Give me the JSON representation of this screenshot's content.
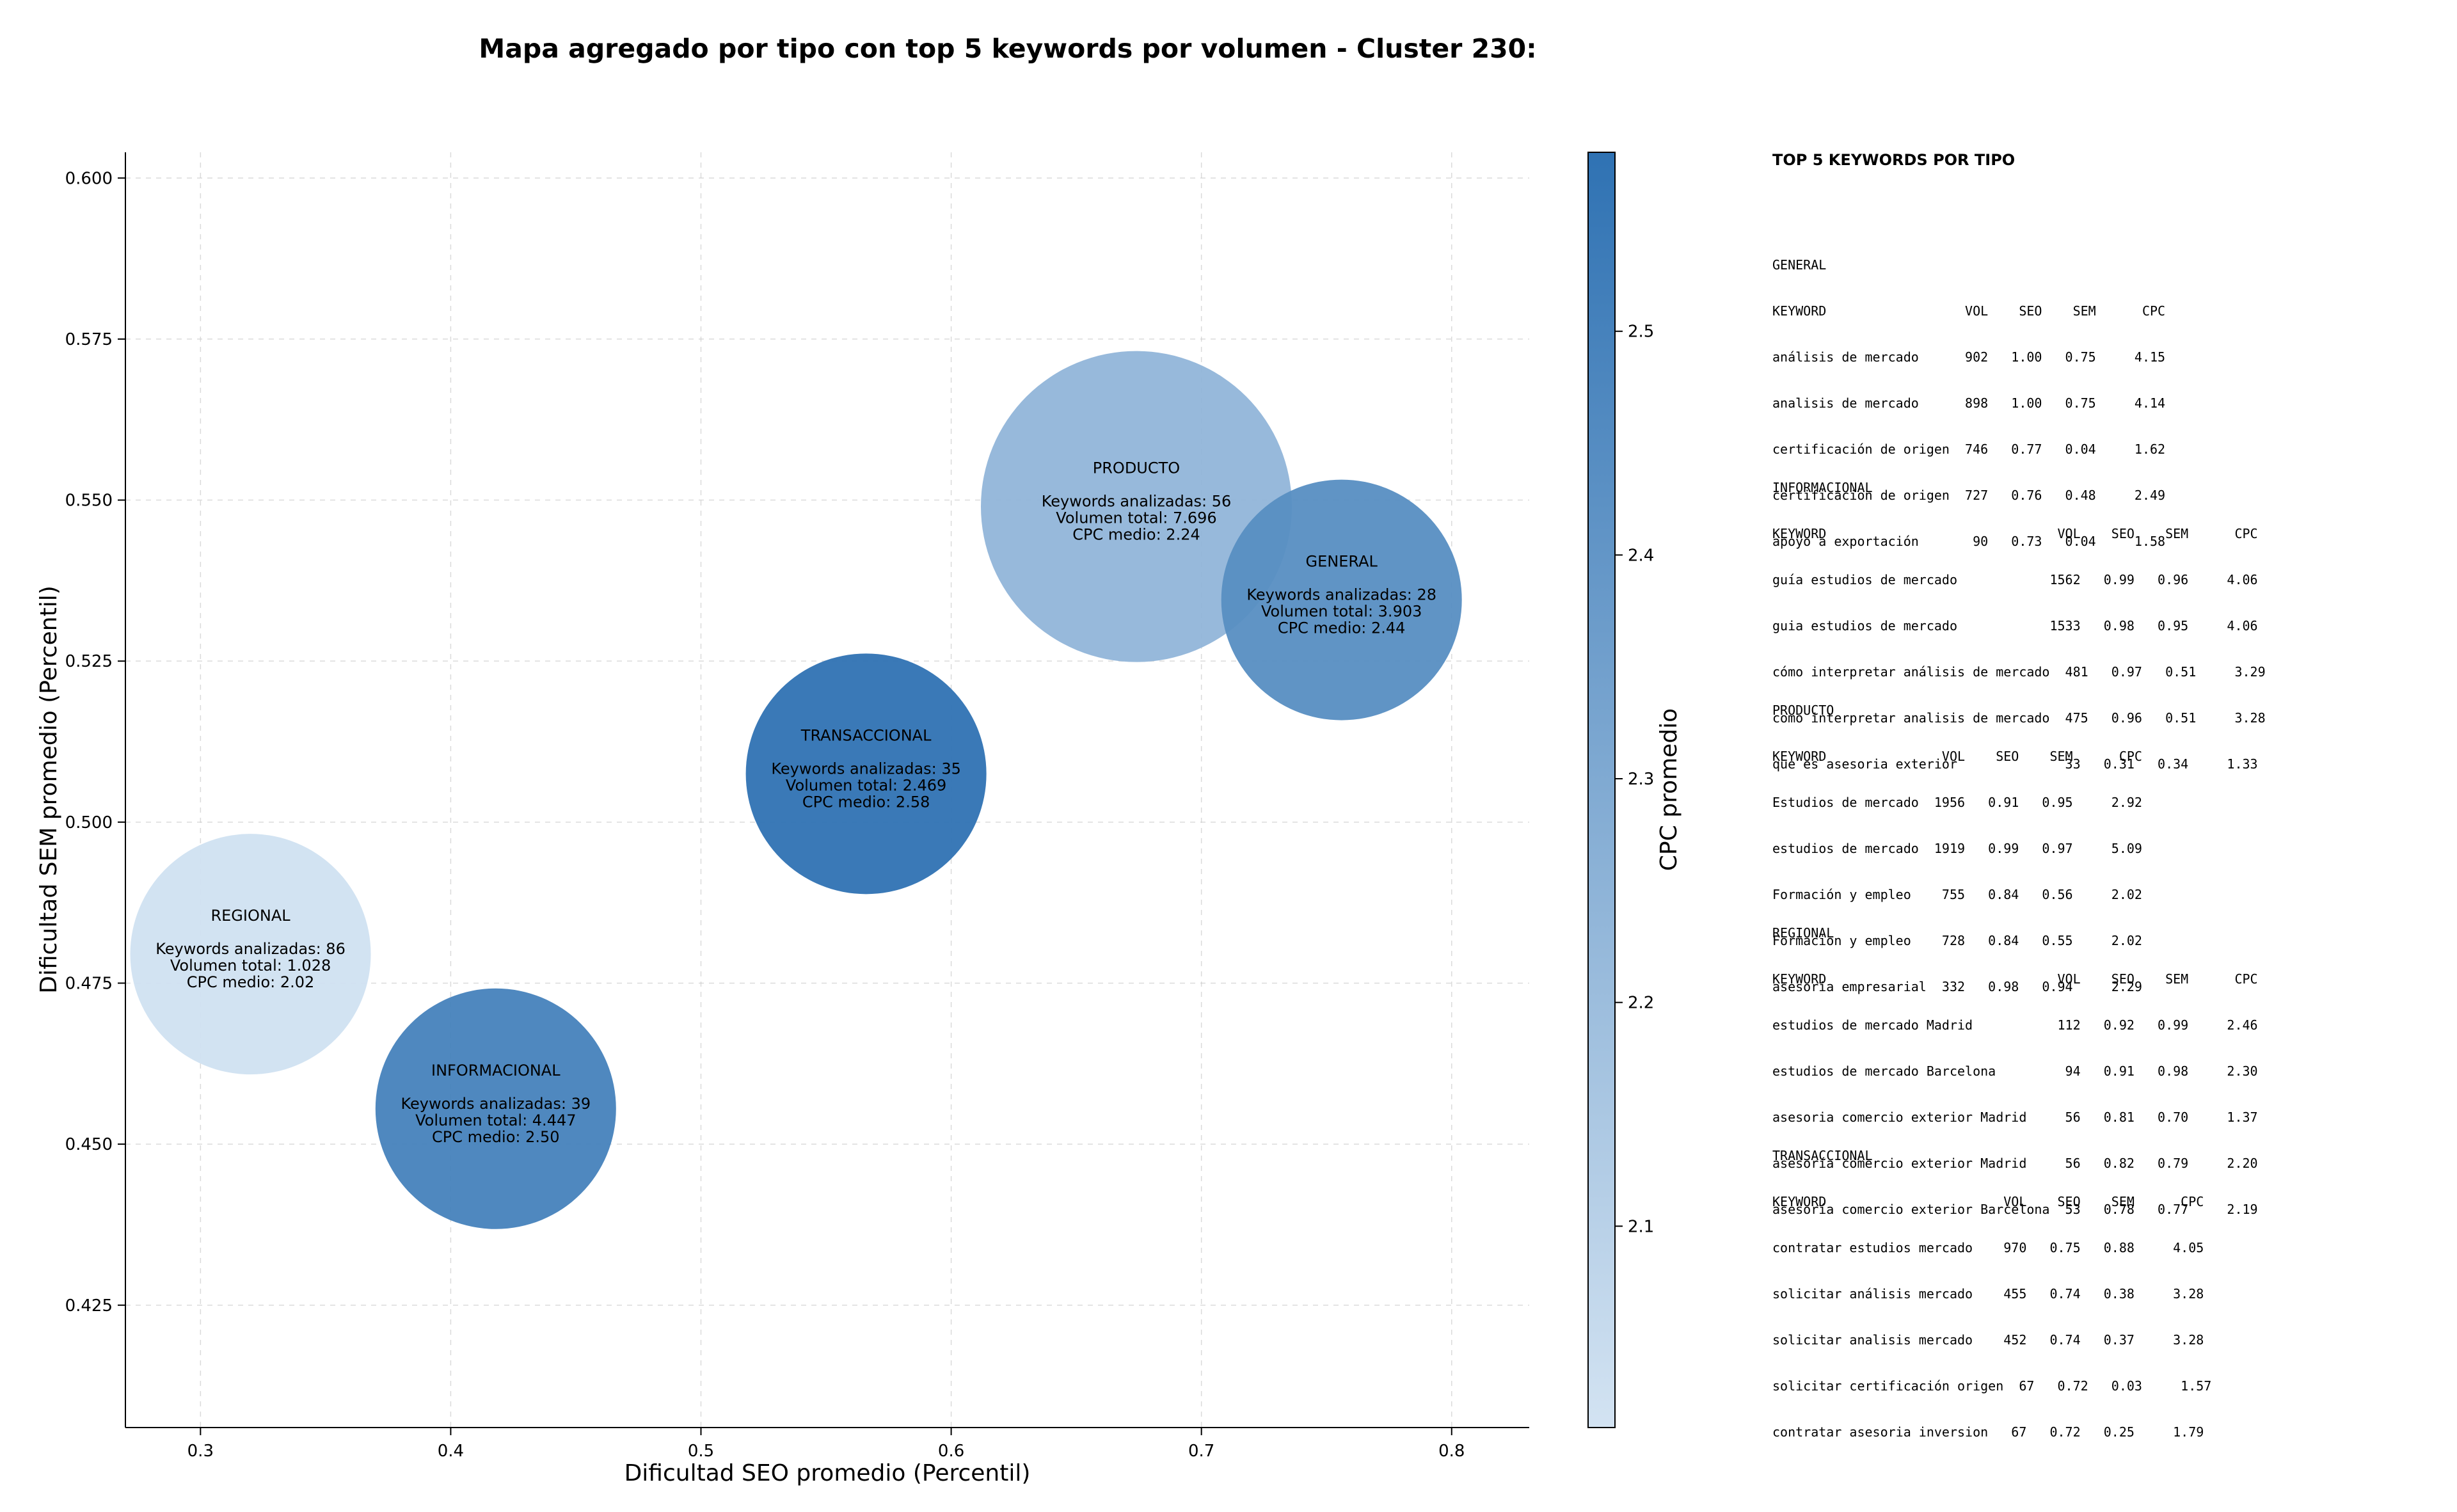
{
  "title": "Mapa agregado por tipo con top 5 keywords por volumen - Cluster 230:",
  "chart_data": {
    "type": "scatter",
    "subtype": "bubble",
    "xlabel": "Dificultad SEO promedio (Percentil)",
    "ylabel": "Dificultad SEM promedio (Percentil)",
    "xlim": [
      0.27,
      0.831
    ],
    "ylim": [
      0.406,
      0.604
    ],
    "xticks": [
      "0.3",
      "0.4",
      "0.5",
      "0.6",
      "0.7",
      "0.8"
    ],
    "yticks": [
      "0.425",
      "0.450",
      "0.475",
      "0.500",
      "0.525",
      "0.550",
      "0.575",
      "0.600"
    ],
    "grid": true,
    "colorbar": {
      "label": "CPC promedio",
      "min": 2.01,
      "max": 2.58,
      "ticks": [
        "2.1",
        "2.2",
        "2.3",
        "2.4",
        "2.5"
      ],
      "color_low": "#d3e3f2",
      "color_high": "#2f72b3"
    },
    "points": [
      {
        "name": "REGIONAL",
        "x": 0.32,
        "y": 0.4795,
        "keywords": 86,
        "volume_value": 1028,
        "cpc": 2.02,
        "lines": [
          "Keywords analizadas: 86",
          "Volumen total: 1.028",
          "CPC medio: 2.02"
        ]
      },
      {
        "name": "INFORMACIONAL",
        "x": 0.418,
        "y": 0.4555,
        "keywords": 39,
        "volume_value": 4447,
        "cpc": 2.5,
        "lines": [
          "Keywords analizadas: 39",
          "Volumen total: 4.447",
          "CPC medio: 2.50"
        ]
      },
      {
        "name": "TRANSACCIONAL",
        "x": 0.566,
        "y": 0.5075,
        "keywords": 35,
        "volume_value": 2469,
        "cpc": 2.58,
        "lines": [
          "Keywords analizadas: 35",
          "Volumen total: 2.469",
          "CPC medio: 2.58"
        ]
      },
      {
        "name": "PRODUCTO",
        "x": 0.674,
        "y": 0.549,
        "keywords": 56,
        "volume_value": 7696,
        "cpc": 2.24,
        "lines": [
          "Keywords analizadas: 56",
          "Volumen total: 7.696",
          "CPC medio: 2.24"
        ]
      },
      {
        "name": "GENERAL",
        "x": 0.756,
        "y": 0.5345,
        "keywords": 28,
        "volume_value": 3903,
        "cpc": 2.44,
        "lines": [
          "Keywords analizadas: 28",
          "Volumen total: 3.903",
          "CPC medio: 2.44"
        ]
      }
    ]
  },
  "panel": {
    "title": "TOP 5 KEYWORDS POR TIPO",
    "sections": [
      {
        "lines": [
          "GENERAL",
          "KEYWORD                  VOL    SEO    SEM      CPC",
          "análisis de mercado      902   1.00   0.75     4.15",
          "analisis de mercado      898   1.00   0.75     4.14",
          "certificación de origen  746   0.77   0.04     1.62",
          "certificacion de origen  727   0.76   0.48     2.49",
          "apoyo a exportación       90   0.73   0.04     1.58"
        ]
      },
      {
        "lines": [
          "INFORMACIONAL",
          "KEYWORD                              VOL    SEO    SEM      CPC",
          "guía estudios de mercado            1562   0.99   0.96     4.06",
          "guia estudios de mercado            1533   0.98   0.95     4.06",
          "cómo interpretar análisis de mercado  481   0.97   0.51     3.29",
          "como interpretar analisis de mercado  475   0.96   0.51     3.28",
          "que es asesoria exterior              33   0.31   0.34     1.33"
        ]
      },
      {
        "lines": [
          "PRODUCTO",
          "KEYWORD               VOL    SEO    SEM      CPC",
          "Estudios de mercado  1956   0.91   0.95     2.92",
          "estudios de mercado  1919   0.99   0.97     5.09",
          "Formación y empleo    755   0.84   0.56     2.02",
          "Formacion y empleo    728   0.84   0.55     2.02",
          "asesoria empresarial  332   0.98   0.94     2.29"
        ]
      },
      {
        "lines": [
          "REGIONAL",
          "KEYWORD                              VOL    SEO    SEM      CPC",
          "estudios de mercado Madrid           112   0.92   0.99     2.46",
          "estudios de mercado Barcelona         94   0.91   0.98     2.30",
          "asesoria comercio exterior Madrid     56   0.81   0.70     1.37",
          "asesoría comercio exterior Madrid     56   0.82   0.79     2.20",
          "asesoría comercio exterior Barcelona  53   0.78   0.77     2.19"
        ]
      },
      {
        "lines": [
          "TRANSACCIONAL",
          "KEYWORD                       VOL    SEO    SEM      CPC",
          "contratar estudios mercado    970   0.75   0.88     4.05",
          "solicitar análisis mercado    455   0.74   0.38     3.28",
          "solicitar analisis mercado    452   0.74   0.37     3.28",
          "solicitar certificación origen  67   0.72   0.03     1.57",
          "contratar asesoria inversion   67   0.72   0.25     1.79"
        ]
      }
    ]
  }
}
